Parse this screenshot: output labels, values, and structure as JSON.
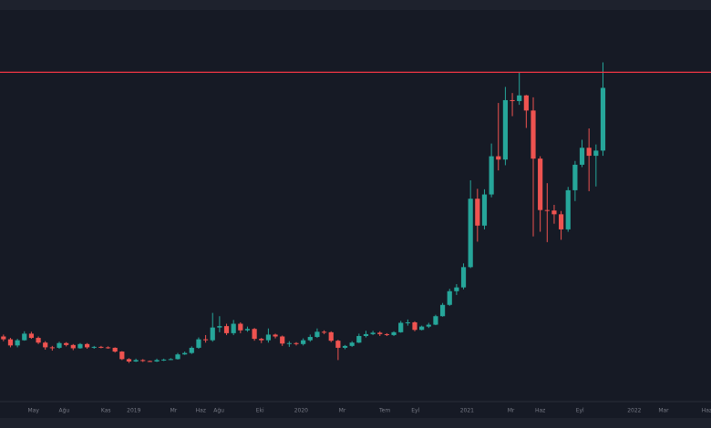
{
  "chart_data": {
    "type": "candlestick",
    "up_color": "#26a69a",
    "down_color": "#ef5350",
    "xlim": [
      0,
      102
    ],
    "ylim": [
      -5000,
      78000
    ],
    "xticks": [
      {
        "value": 4.8,
        "label": "May"
      },
      {
        "value": 9.2,
        "label": "Ağu"
      },
      {
        "value": 15.2,
        "label": "Kas"
      },
      {
        "value": 19.2,
        "label": "2019"
      },
      {
        "value": 24.9,
        "label": "Mr"
      },
      {
        "value": 28.8,
        "label": "Haz"
      },
      {
        "value": 31.4,
        "label": "Ağu"
      },
      {
        "value": 37.3,
        "label": "Eki"
      },
      {
        "value": 43.2,
        "label": "2020"
      },
      {
        "value": 49.1,
        "label": "Mr"
      },
      {
        "value": 55.2,
        "label": "Tem"
      },
      {
        "value": 59.6,
        "label": "Eyl"
      },
      {
        "value": 67,
        "label": "2021"
      },
      {
        "value": 73.3,
        "label": "Mr"
      },
      {
        "value": 77.5,
        "label": "Haz"
      },
      {
        "value": 83.2,
        "label": "Eyl"
      },
      {
        "value": 91,
        "label": "2022"
      },
      {
        "value": 95.2,
        "label": "Mar"
      },
      {
        "value": 101.4,
        "label": "Haz"
      }
    ],
    "hline": {
      "value": 64800,
      "color": "#f23645"
    },
    "series": [
      {
        "open": [
          8800,
          8200,
          6900,
          8000,
          9400,
          8500,
          7500,
          6500,
          6400,
          7400,
          7000,
          6300,
          7200,
          6500,
          6600,
          6500,
          6400,
          5600,
          4000,
          3500,
          3800,
          3600,
          3500,
          3800,
          3900,
          4000,
          5000,
          5300,
          6400,
          8200,
          8000,
          10700,
          11000,
          9500,
          11500,
          10100,
          10400,
          8300,
          8000,
          9200,
          8800,
          7300,
          7400,
          7200,
          8000,
          8700,
          9800,
          9700,
          7900,
          6400,
          6800,
          7500,
          8900,
          9300,
          9600,
          9300,
          9100,
          9700,
          11700,
          11800,
          10200,
          10900,
          11300,
          13100,
          15500,
          18400,
          19200,
          23500,
          38000,
          32300,
          38900,
          47000,
          46300,
          58900,
          58700,
          59900,
          56700,
          46500,
          35600,
          35500,
          34700,
          31500,
          39800,
          45200,
          48800,
          47100,
          48200
        ],
        "high": [
          9200,
          8500,
          8300,
          9900,
          9800,
          8800,
          7800,
          6800,
          7700,
          7600,
          7200,
          7400,
          7400,
          6800,
          6800,
          6700,
          6500,
          5700,
          4200,
          4100,
          4000,
          3700,
          4100,
          4100,
          4200,
          5300,
          5600,
          6700,
          8600,
          9100,
          13800,
          13100,
          11500,
          12300,
          11800,
          10900,
          10600,
          8500,
          10500,
          9400,
          9000,
          7800,
          7600,
          8400,
          9200,
          10500,
          10100,
          9900,
          8100,
          7000,
          7800,
          9400,
          10000,
          10000,
          9900,
          9500,
          9900,
          12100,
          12400,
          12000,
          11100,
          11700,
          13400,
          15900,
          18900,
          19900,
          24300,
          41900,
          40100,
          40000,
          49700,
          58300,
          61700,
          60400,
          64800,
          60000,
          59500,
          47000,
          41300,
          36700,
          35400,
          40500,
          46000,
          50500,
          52900,
          49500,
          66900
        ],
        "low": [
          7800,
          6500,
          6500,
          7900,
          8300,
          7200,
          6000,
          5800,
          6200,
          6700,
          5900,
          6200,
          6200,
          6200,
          6300,
          6200,
          5400,
          3800,
          3200,
          3400,
          3400,
          3400,
          3400,
          3600,
          3800,
          3900,
          4900,
          5100,
          6200,
          7500,
          7700,
          9700,
          9100,
          9100,
          9500,
          9800,
          7900,
          7400,
          7500,
          8400,
          6800,
          6600,
          6900,
          6900,
          7700,
          8500,
          9300,
          7600,
          3800,
          6100,
          6600,
          7400,
          8600,
          9100,
          8900,
          8900,
          8900,
          9600,
          11100,
          9900,
          10100,
          10600,
          11200,
          13000,
          15300,
          17600,
          18800,
          23300,
          28900,
          31500,
          38300,
          44000,
          45100,
          55500,
          57900,
          53000,
          30000,
          31000,
          28800,
          32700,
          29300,
          31000,
          37500,
          44700,
          39600,
          40600,
          47100
        ],
        "close": [
          8200,
          6900,
          8000,
          9400,
          8500,
          7500,
          6500,
          6400,
          7400,
          7000,
          6300,
          7200,
          6500,
          6600,
          6500,
          6400,
          5600,
          4000,
          3500,
          3800,
          3600,
          3500,
          3800,
          3900,
          4000,
          5000,
          5300,
          6400,
          8200,
          8000,
          10700,
          11000,
          9500,
          11500,
          10100,
          10400,
          8300,
          8000,
          9200,
          8800,
          7300,
          7400,
          7200,
          8000,
          8700,
          9800,
          9700,
          7900,
          6400,
          6800,
          7500,
          8900,
          9300,
          9600,
          9300,
          9100,
          9700,
          11700,
          11800,
          10200,
          10900,
          11300,
          13100,
          15500,
          18400,
          19200,
          23500,
          38000,
          32300,
          38900,
          47000,
          46300,
          58900,
          58700,
          59900,
          56700,
          46500,
          35600,
          35500,
          34700,
          31500,
          39800,
          45200,
          48800,
          47100,
          48200,
          61500
        ]
      }
    ]
  }
}
